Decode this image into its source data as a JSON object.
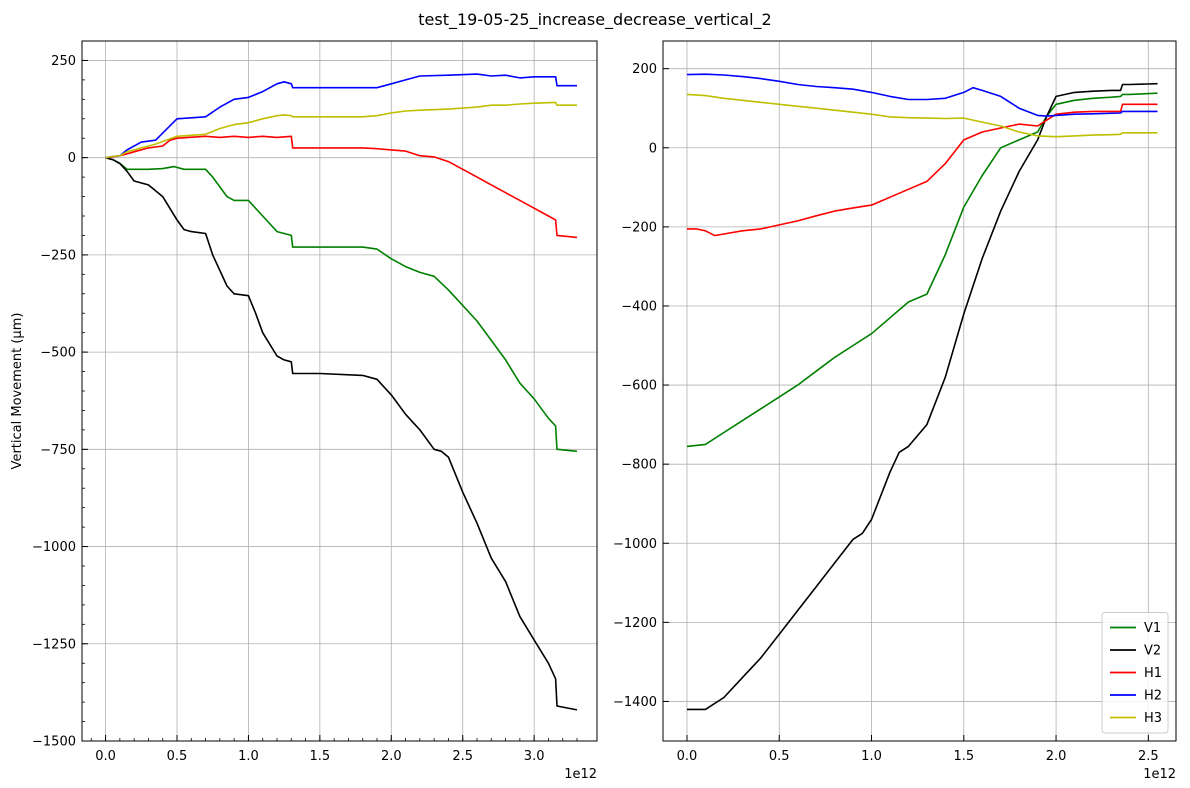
{
  "figure": {
    "title": "test_19-05-25_increase_decrease_vertical_2"
  },
  "chart_data": [
    {
      "type": "line",
      "panel": "left",
      "ylabel": "Vertical Movement (µm)",
      "xlabel": "",
      "x_offset_label": "1e12",
      "xlim": [
        -0.165,
        3.44
      ],
      "ylim": [
        -1500,
        300
      ],
      "xticks": [
        0.0,
        0.5,
        1.0,
        1.5,
        2.0,
        2.5,
        3.0
      ],
      "xtick_labels": [
        "0.0",
        "0.5",
        "1.0",
        "1.5",
        "2.0",
        "2.5",
        "3.0"
      ],
      "yticks": [
        250,
        0,
        -250,
        -500,
        -750,
        -1000,
        -1250,
        -1500
      ],
      "ytick_labels": [
        "250",
        "0",
        "−250",
        "−500",
        "−750",
        "−1000",
        "−1250",
        "−1500"
      ],
      "grid": true,
      "legend": false,
      "series": [
        {
          "name": "V1",
          "color": "#008000",
          "x": [
            0.0,
            0.05,
            0.1,
            0.15,
            0.3,
            0.4,
            0.48,
            0.55,
            0.7,
            0.75,
            0.85,
            0.9,
            1.0,
            1.1,
            1.2,
            1.3,
            1.31,
            1.5,
            1.8,
            1.9,
            2.0,
            2.1,
            2.2,
            2.3,
            2.4,
            2.5,
            2.6,
            2.7,
            2.8,
            2.9,
            3.0,
            3.1,
            3.15,
            3.16,
            3.3
          ],
          "y": [
            0,
            -5,
            -15,
            -30,
            -30,
            -28,
            -23,
            -30,
            -30,
            -50,
            -100,
            -110,
            -110,
            -150,
            -190,
            -200,
            -230,
            -230,
            -230,
            -235,
            -260,
            -280,
            -295,
            -305,
            -340,
            -380,
            -420,
            -470,
            -520,
            -580,
            -620,
            -670,
            -690,
            -750,
            -755
          ]
        },
        {
          "name": "V2",
          "color": "#000000",
          "x": [
            0.0,
            0.05,
            0.1,
            0.15,
            0.2,
            0.3,
            0.4,
            0.5,
            0.55,
            0.6,
            0.7,
            0.75,
            0.85,
            0.9,
            1.0,
            1.05,
            1.1,
            1.2,
            1.25,
            1.3,
            1.31,
            1.5,
            1.8,
            1.9,
            2.0,
            2.1,
            2.2,
            2.3,
            2.35,
            2.4,
            2.5,
            2.6,
            2.7,
            2.8,
            2.9,
            3.0,
            3.1,
            3.15,
            3.16,
            3.3
          ],
          "y": [
            0,
            -5,
            -15,
            -35,
            -60,
            -70,
            -100,
            -160,
            -185,
            -190,
            -195,
            -250,
            -330,
            -350,
            -355,
            -400,
            -450,
            -510,
            -520,
            -525,
            -555,
            -555,
            -560,
            -570,
            -610,
            -660,
            -700,
            -750,
            -755,
            -770,
            -860,
            -940,
            -1030,
            -1090,
            -1180,
            -1240,
            -1300,
            -1340,
            -1410,
            -1420
          ]
        },
        {
          "name": "H1",
          "color": "#ff0000",
          "x": [
            0.0,
            0.05,
            0.1,
            0.15,
            0.2,
            0.3,
            0.4,
            0.45,
            0.5,
            0.7,
            0.8,
            0.9,
            1.0,
            1.1,
            1.2,
            1.3,
            1.31,
            1.5,
            1.8,
            1.9,
            2.0,
            2.1,
            2.2,
            2.3,
            2.4,
            2.5,
            2.6,
            2.7,
            2.8,
            2.9,
            3.0,
            3.1,
            3.15,
            3.16,
            3.3
          ],
          "y": [
            0,
            2,
            5,
            10,
            15,
            25,
            30,
            45,
            50,
            55,
            52,
            55,
            52,
            55,
            52,
            55,
            25,
            25,
            25,
            23,
            20,
            17,
            5,
            2,
            -10,
            -30,
            -50,
            -70,
            -90,
            -110,
            -130,
            -150,
            -160,
            -200,
            -205
          ]
        },
        {
          "name": "H2",
          "color": "#0000ff",
          "x": [
            0.0,
            0.05,
            0.1,
            0.15,
            0.25,
            0.35,
            0.5,
            0.7,
            0.8,
            0.9,
            1.0,
            1.1,
            1.2,
            1.25,
            1.3,
            1.31,
            1.5,
            1.8,
            1.9,
            2.0,
            2.1,
            2.2,
            2.4,
            2.6,
            2.7,
            2.8,
            2.9,
            3.0,
            3.15,
            3.16,
            3.3
          ],
          "y": [
            0,
            3,
            5,
            20,
            40,
            45,
            100,
            105,
            130,
            150,
            155,
            170,
            190,
            195,
            190,
            180,
            180,
            180,
            180,
            190,
            200,
            210,
            212,
            215,
            210,
            212,
            205,
            208,
            208,
            185,
            185
          ]
        },
        {
          "name": "H3",
          "color": "#bfbf00",
          "x": [
            0.0,
            0.05,
            0.1,
            0.15,
            0.25,
            0.35,
            0.5,
            0.7,
            0.8,
            0.9,
            1.0,
            1.1,
            1.2,
            1.25,
            1.3,
            1.31,
            1.5,
            1.8,
            1.9,
            2.0,
            2.1,
            2.2,
            2.4,
            2.6,
            2.7,
            2.8,
            2.9,
            3.0,
            3.15,
            3.16,
            3.3
          ],
          "y": [
            0,
            3,
            5,
            15,
            25,
            35,
            55,
            60,
            75,
            85,
            90,
            100,
            108,
            110,
            108,
            105,
            105,
            105,
            108,
            115,
            120,
            122,
            125,
            130,
            135,
            135,
            138,
            140,
            142,
            135,
            135
          ]
        }
      ]
    },
    {
      "type": "line",
      "panel": "right",
      "ylabel": "",
      "xlabel": "",
      "x_offset_label": "1e12",
      "xlim": [
        -0.13,
        2.65
      ],
      "ylim": [
        -1500,
        270
      ],
      "xticks": [
        0.0,
        0.5,
        1.0,
        1.5,
        2.0,
        2.5
      ],
      "xtick_labels": [
        "0.0",
        "0.5",
        "1.0",
        "1.5",
        "2.0",
        "2.5"
      ],
      "yticks": [
        200,
        0,
        -200,
        -400,
        -600,
        -800,
        -1000,
        -1200,
        -1400
      ],
      "ytick_labels": [
        "200",
        "0",
        "−200",
        "−400",
        "−600",
        "−800",
        "−1000",
        "−1200",
        "−1400"
      ],
      "grid": true,
      "legend": true,
      "legend_position": "lower-right",
      "series": [
        {
          "name": "V1",
          "color": "#008000",
          "x": [
            0.0,
            0.1,
            0.2,
            0.3,
            0.4,
            0.5,
            0.6,
            0.7,
            0.8,
            0.9,
            1.0,
            1.1,
            1.2,
            1.3,
            1.4,
            1.5,
            1.6,
            1.7,
            1.8,
            1.9,
            1.95,
            2.0,
            2.1,
            2.2,
            2.3,
            2.35,
            2.36,
            2.4,
            2.55
          ],
          "y": [
            -755,
            -750,
            -720,
            -690,
            -660,
            -630,
            -600,
            -565,
            -530,
            -500,
            -470,
            -430,
            -390,
            -370,
            -270,
            -150,
            -70,
            0,
            20,
            40,
            80,
            110,
            120,
            125,
            128,
            130,
            135,
            135,
            138
          ]
        },
        {
          "name": "V2",
          "color": "#000000",
          "x": [
            0.0,
            0.1,
            0.2,
            0.3,
            0.4,
            0.5,
            0.6,
            0.7,
            0.8,
            0.9,
            0.95,
            1.0,
            1.1,
            1.15,
            1.2,
            1.3,
            1.4,
            1.5,
            1.6,
            1.7,
            1.8,
            1.9,
            1.95,
            2.0,
            2.1,
            2.2,
            2.3,
            2.35,
            2.36,
            2.4,
            2.55
          ],
          "y": [
            -1420,
            -1420,
            -1390,
            -1340,
            -1290,
            -1230,
            -1170,
            -1110,
            -1050,
            -990,
            -975,
            -940,
            -820,
            -770,
            -755,
            -700,
            -580,
            -420,
            -280,
            -160,
            -60,
            20,
            80,
            130,
            140,
            143,
            145,
            145,
            160,
            160,
            162
          ]
        },
        {
          "name": "H1",
          "color": "#ff0000",
          "x": [
            0.0,
            0.05,
            0.1,
            0.15,
            0.2,
            0.3,
            0.4,
            0.5,
            0.6,
            0.7,
            0.8,
            0.9,
            1.0,
            1.1,
            1.2,
            1.3,
            1.4,
            1.5,
            1.6,
            1.7,
            1.8,
            1.9,
            1.95,
            2.0,
            2.1,
            2.2,
            2.3,
            2.35,
            2.36,
            2.4,
            2.55
          ],
          "y": [
            -205,
            -205,
            -210,
            -222,
            -218,
            -210,
            -205,
            -195,
            -185,
            -172,
            -160,
            -152,
            -145,
            -125,
            -105,
            -85,
            -40,
            20,
            40,
            50,
            60,
            55,
            70,
            85,
            90,
            92,
            92,
            92,
            110,
            110,
            110
          ]
        },
        {
          "name": "H2",
          "color": "#0000ff",
          "x": [
            0.0,
            0.1,
            0.2,
            0.3,
            0.4,
            0.5,
            0.6,
            0.7,
            0.8,
            0.9,
            1.0,
            1.1,
            1.2,
            1.3,
            1.4,
            1.5,
            1.55,
            1.6,
            1.7,
            1.8,
            1.9,
            1.95,
            2.0,
            2.1,
            2.2,
            2.35,
            2.36,
            2.55
          ],
          "y": [
            185,
            186,
            184,
            180,
            175,
            168,
            160,
            155,
            152,
            148,
            140,
            130,
            122,
            122,
            125,
            140,
            152,
            145,
            130,
            100,
            82,
            80,
            82,
            85,
            86,
            88,
            92,
            92
          ]
        },
        {
          "name": "H3",
          "color": "#bfbf00",
          "x": [
            0.0,
            0.1,
            0.2,
            0.3,
            0.4,
            0.5,
            0.6,
            0.7,
            0.8,
            0.9,
            1.0,
            1.1,
            1.2,
            1.3,
            1.4,
            1.5,
            1.6,
            1.7,
            1.8,
            1.9,
            2.0,
            2.1,
            2.2,
            2.3,
            2.35,
            2.36,
            2.55
          ],
          "y": [
            135,
            132,
            125,
            120,
            115,
            110,
            105,
            100,
            95,
            90,
            85,
            78,
            76,
            75,
            74,
            75,
            65,
            55,
            40,
            30,
            28,
            30,
            32,
            33,
            34,
            38,
            38
          ]
        }
      ]
    }
  ]
}
